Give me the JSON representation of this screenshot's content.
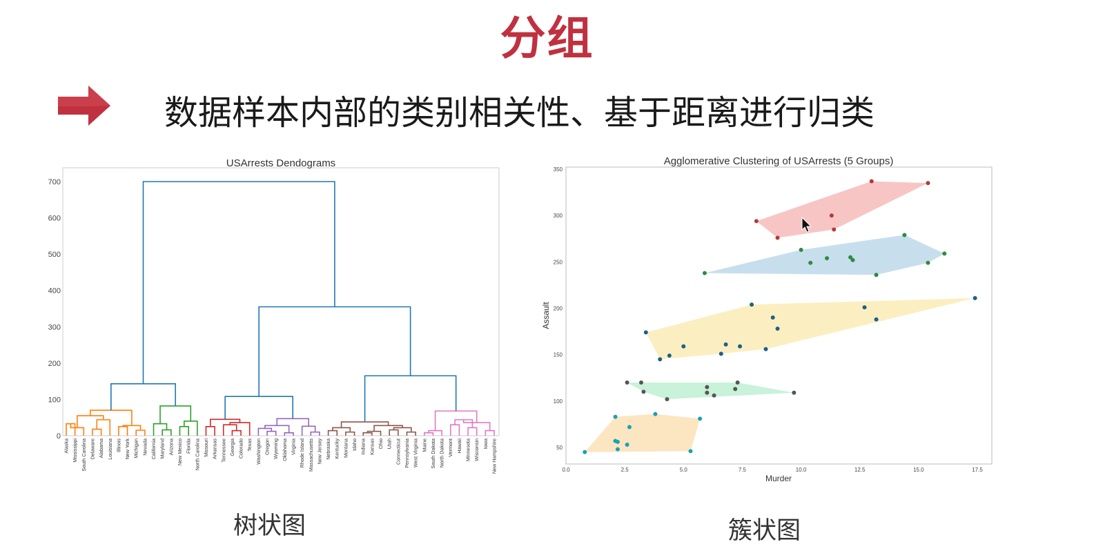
{
  "slide": {
    "title": "分组",
    "subtitle": "数据样本内部的类别相关性、基于距离进行归类",
    "arrow_icon": "right-arrow-icon",
    "accent_color": "#c0313f"
  },
  "captions": {
    "left": "树状图",
    "right": "簇状图"
  },
  "chart_data": [
    {
      "type": "dendrogram",
      "title": "USArrests Dendograms",
      "xlabel": "",
      "ylabel": "",
      "ylim": [
        0,
        720
      ],
      "yticks": [
        0,
        100,
        200,
        300,
        400,
        500,
        600,
        700
      ],
      "leaves": [
        "Alaska",
        "Mississippi",
        "South Carolina",
        "Delaware",
        "Alabama",
        "Louisiana",
        "Illinois",
        "New York",
        "Michigan",
        "Nevada",
        "California",
        "Maryland",
        "Arizona",
        "New Mexico",
        "Florida",
        "North Carolina",
        "Missouri",
        "Arkansas",
        "Tennessee",
        "Georgia",
        "Colorado",
        "Texas",
        "Washington",
        "Oregon",
        "Wyoming",
        "Oklahoma",
        "Virginia",
        "Rhode Island",
        "Massachusetts",
        "New Jersey",
        "Nebraska",
        "Kentucky",
        "Montana",
        "Idaho",
        "Indiana",
        "Kansas",
        "Ohio",
        "Utah",
        "Connecticut",
        "Pennsylvania",
        "West Virginia",
        "Maine",
        "South Dakota",
        "North Dakota",
        "Vermont",
        "Hawaii",
        "Minnesota",
        "Wisconsin",
        "Iowa",
        "New Hampshire"
      ],
      "cluster_colors": [
        "#ff7f0e",
        "#2ca02c",
        "#d62728",
        "#9467bd",
        "#8c564b",
        "#e377c2"
      ],
      "link_color": "#1f77b4",
      "merge_heights": {
        "root": 700,
        "left": 143,
        "right": 355,
        "right_a": 108,
        "right_b": 165,
        "orange": 70,
        "green": 82,
        "red": 45,
        "purple": 47,
        "brown": 38,
        "pink": 68
      }
    },
    {
      "type": "scatter",
      "title": "Agglomerative Clustering of USArrests (5 Groups)",
      "xlabel": "Murder",
      "ylabel": "Assault",
      "xlim": [
        0,
        17.5
      ],
      "ylim": [
        30,
        350
      ],
      "xticks": [
        0.0,
        2.5,
        5.0,
        7.5,
        10.0,
        12.5,
        15.0,
        17.5
      ],
      "yticks": [
        50,
        100,
        150,
        200,
        250,
        300,
        350
      ],
      "grid": false,
      "groups": [
        {
          "color": "#b23a3a",
          "hull_color": "#f4a6a6",
          "points": [
            [
              8.1,
              294
            ],
            [
              9.0,
              276
            ],
            [
              11.3,
              300
            ],
            [
              11.4,
              285
            ],
            [
              13.0,
              337
            ],
            [
              15.4,
              335
            ]
          ]
        },
        {
          "color": "#2e8b3e",
          "hull_color": "#a9cce3",
          "points": [
            [
              5.9,
              238
            ],
            [
              10.0,
              263
            ],
            [
              10.4,
              249
            ],
            [
              11.1,
              254
            ],
            [
              12.1,
              255
            ],
            [
              12.2,
              252
            ],
            [
              13.2,
              236
            ],
            [
              14.4,
              279
            ],
            [
              15.4,
              249
            ],
            [
              16.1,
              259
            ]
          ]
        },
        {
          "color": "#1f5f8b",
          "hull_color": "#f9e79f",
          "points": [
            [
              3.4,
              174
            ],
            [
              4.0,
              145
            ],
            [
              4.4,
              149
            ],
            [
              5.0,
              159
            ],
            [
              6.6,
              151
            ],
            [
              6.8,
              161
            ],
            [
              7.4,
              159
            ],
            [
              7.9,
              204
            ],
            [
              8.5,
              156
            ],
            [
              8.8,
              190
            ],
            [
              9.0,
              178
            ],
            [
              12.7,
              201
            ],
            [
              13.2,
              188
            ],
            [
              17.4,
              211
            ]
          ]
        },
        {
          "color": "#555555",
          "hull_color": "#abebc6",
          "points": [
            [
              2.6,
              120
            ],
            [
              3.2,
              120
            ],
            [
              3.3,
              110
            ],
            [
              4.3,
              102
            ],
            [
              6.0,
              115
            ],
            [
              6.0,
              109
            ],
            [
              6.3,
              106
            ],
            [
              7.2,
              113
            ],
            [
              7.3,
              120
            ],
            [
              9.7,
              109
            ]
          ]
        },
        {
          "color": "#17a2b8",
          "hull_color": "#fad7a0",
          "points": [
            [
              0.8,
              45
            ],
            [
              2.1,
              83
            ],
            [
              2.1,
              57
            ],
            [
              2.2,
              56
            ],
            [
              2.2,
              48
            ],
            [
              2.6,
              53
            ],
            [
              2.7,
              72
            ],
            [
              3.8,
              86
            ],
            [
              5.3,
              46
            ],
            [
              5.7,
              81
            ]
          ]
        }
      ]
    }
  ]
}
